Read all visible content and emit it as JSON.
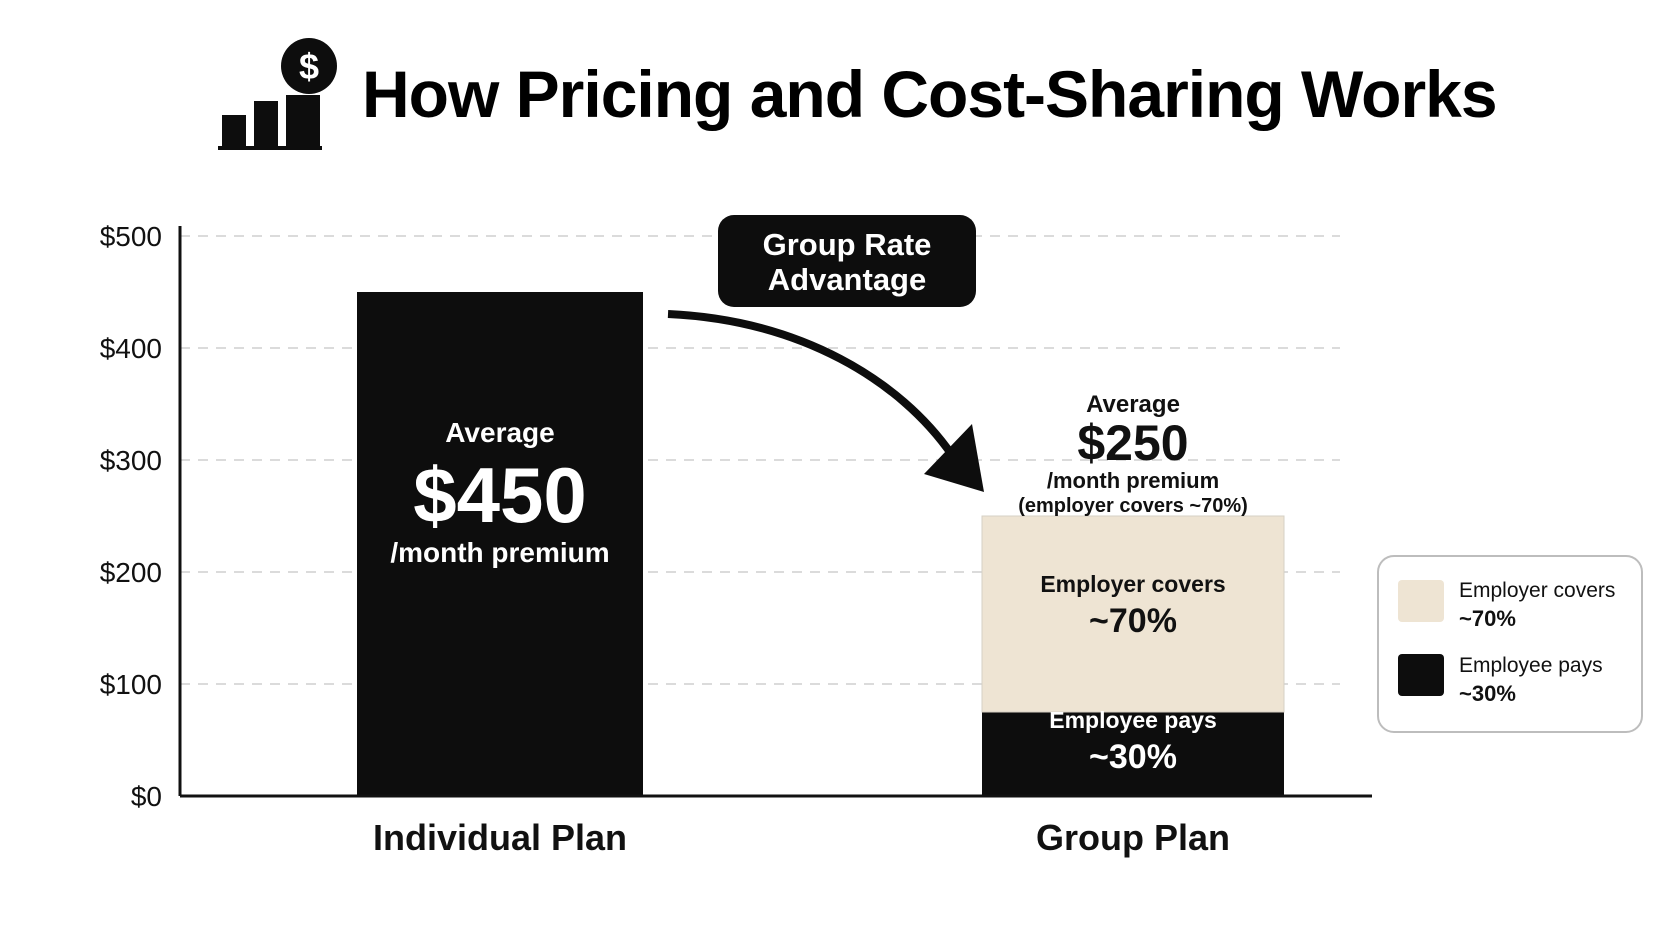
{
  "title": "How Pricing and Cost-Sharing Works",
  "icons": {
    "title_icon": "bar-chart-dollar-icon"
  },
  "colors": {
    "bar_dark": "#0d0d0d",
    "employer_fill": "#eee4d3",
    "grid": "#cfcfcf"
  },
  "callout": {
    "line1": "Group Rate",
    "line2": "Advantage"
  },
  "individual_label": {
    "prefix": "Average",
    "amount": "$450",
    "suffix": "/month premium"
  },
  "group_label": {
    "prefix": "Average",
    "amount": "$250",
    "suffix": "/month premium",
    "note": "(employer covers ~70%)"
  },
  "segment_labels": {
    "employer": {
      "label": "Employer covers",
      "pct": "~70%"
    },
    "employee": {
      "label": "Employee pays",
      "pct": "~30%"
    }
  },
  "legend": [
    {
      "label": "Employer covers",
      "pct": "~70%",
      "color": "#eee4d3"
    },
    {
      "label": "Employee pays",
      "pct": "~30%",
      "color": "#0d0d0d"
    }
  ],
  "chart_data": {
    "type": "bar",
    "title": "How Pricing and Cost-Sharing Works",
    "categories": [
      "Individual Plan",
      "Group Plan"
    ],
    "series": [
      {
        "name": "Employee pays",
        "values": [
          450,
          75
        ]
      },
      {
        "name": "Employer covers",
        "values": [
          0,
          175
        ]
      }
    ],
    "totals": [
      450,
      250
    ],
    "ylim": [
      0,
      500
    ],
    "yticks": [
      0,
      100,
      200,
      300,
      400,
      500
    ],
    "ytick_labels": [
      "$0",
      "$100",
      "$200",
      "$300",
      "$400",
      "$500"
    ],
    "grid": true,
    "legend_position": "right"
  }
}
